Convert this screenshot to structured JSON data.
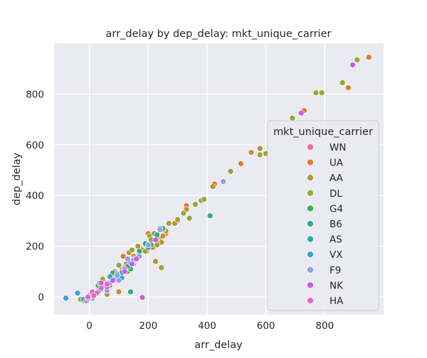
{
  "chart_data": {
    "type": "scatter",
    "title": "arr_delay by dep_delay: mkt_unique_carrier",
    "xlabel": "arr_delay",
    "ylabel": "dep_delay",
    "xlim": [
      -120,
      1000
    ],
    "ylim": [
      -70,
      1000
    ],
    "xticks": [
      0,
      200,
      400,
      600,
      800
    ],
    "yticks": [
      0,
      200,
      400,
      600,
      800
    ],
    "grid": true,
    "legend": {
      "title": "mkt_unique_carrier",
      "placement": "right"
    },
    "series": [
      {
        "name": "WN",
        "color": "#e8708a",
        "points": [
          [
            10,
            20
          ],
          [
            30,
            25
          ],
          [
            45,
            50
          ],
          [
            60,
            55
          ],
          [
            80,
            75
          ],
          [
            95,
            90
          ],
          [
            110,
            115
          ],
          [
            125,
            130
          ],
          [
            140,
            150
          ],
          [
            160,
            160
          ],
          [
            175,
            180
          ],
          [
            20,
            10
          ],
          [
            -10,
            -5
          ],
          [
            5,
            0
          ],
          [
            70,
            60
          ],
          [
            100,
            85
          ],
          [
            130,
            120
          ],
          [
            150,
            145
          ],
          [
            200,
            190
          ],
          [
            85,
            100
          ],
          [
            40,
            30
          ]
        ]
      },
      {
        "name": "UA",
        "color": "#e07a2e",
        "points": [
          [
            950,
            945
          ],
          [
            880,
            825
          ],
          [
            730,
            735
          ],
          [
            600,
            565
          ],
          [
            515,
            525
          ],
          [
            425,
            445
          ],
          [
            330,
            360
          ],
          [
            300,
            300
          ],
          [
            260,
            250
          ],
          [
            240,
            230
          ],
          [
            230,
            230
          ],
          [
            200,
            200
          ],
          [
            185,
            180
          ],
          [
            170,
            170
          ],
          [
            150,
            160
          ],
          [
            130,
            120
          ],
          [
            110,
            100
          ],
          [
            90,
            80
          ],
          [
            60,
            55
          ],
          [
            30,
            20
          ],
          [
            10,
            5
          ],
          [
            -5,
            -5
          ],
          [
            115,
            160
          ],
          [
            175,
            190
          ],
          [
            200,
            250
          ],
          [
            250,
            270
          ],
          [
            215,
            195
          ],
          [
            235,
            215
          ]
        ]
      },
      {
        "name": "AA",
        "color": "#b79532",
        "points": [
          [
            580,
            585
          ],
          [
            550,
            570
          ],
          [
            420,
            435
          ],
          [
            380,
            380
          ],
          [
            330,
            345
          ],
          [
            320,
            330
          ],
          [
            290,
            290
          ],
          [
            260,
            260
          ],
          [
            250,
            240
          ],
          [
            240,
            270
          ],
          [
            225,
            140
          ],
          [
            195,
            180
          ],
          [
            180,
            185
          ],
          [
            160,
            150
          ],
          [
            150,
            130
          ],
          [
            140,
            145
          ],
          [
            120,
            110
          ],
          [
            100,
            90
          ],
          [
            85,
            75
          ],
          [
            70,
            60
          ],
          [
            55,
            40
          ],
          [
            40,
            35
          ],
          [
            20,
            15
          ],
          [
            5,
            5
          ],
          [
            -15,
            -10
          ],
          [
            100,
            20
          ],
          [
            60,
            10
          ],
          [
            165,
            200
          ],
          [
            245,
            215
          ],
          [
            230,
            215
          ],
          [
            135,
            175
          ]
        ]
      },
      {
        "name": "DL",
        "color": "#96a833",
        "points": [
          [
            910,
            935
          ],
          [
            860,
            845
          ],
          [
            790,
            805
          ],
          [
            770,
            805
          ],
          [
            690,
            705
          ],
          [
            600,
            565
          ],
          [
            580,
            560
          ],
          [
            480,
            495
          ],
          [
            390,
            385
          ],
          [
            360,
            365
          ],
          [
            340,
            310
          ],
          [
            320,
            330
          ],
          [
            300,
            305
          ],
          [
            270,
            290
          ],
          [
            250,
            265
          ],
          [
            245,
            115
          ],
          [
            230,
            205
          ],
          [
            200,
            195
          ],
          [
            190,
            180
          ],
          [
            170,
            175
          ],
          [
            150,
            150
          ],
          [
            140,
            130
          ],
          [
            120,
            115
          ],
          [
            110,
            95
          ],
          [
            95,
            80
          ],
          [
            80,
            70
          ],
          [
            65,
            55
          ],
          [
            50,
            45
          ],
          [
            30,
            25
          ],
          [
            15,
            10
          ],
          [
            0,
            0
          ],
          [
            -20,
            -15
          ],
          [
            -30,
            -10
          ],
          [
            45,
            70
          ],
          [
            130,
            100
          ],
          [
            205,
            240
          ],
          [
            210,
            225
          ],
          [
            220,
            250
          ],
          [
            100,
            125
          ],
          [
            145,
            185
          ],
          [
            70,
            45
          ]
        ]
      },
      {
        "name": "G4",
        "color": "#3cad5b",
        "points": [
          [
            140,
            110
          ],
          [
            60,
            35
          ],
          [
            100,
            80
          ],
          [
            20,
            10
          ],
          [
            80,
            95
          ],
          [
            30,
            45
          ]
        ]
      },
      {
        "name": "B6",
        "color": "#36a88a",
        "points": [
          [
            410,
            320
          ],
          [
            250,
            270
          ],
          [
            170,
            180
          ],
          [
            130,
            120
          ],
          [
            90,
            70
          ],
          [
            50,
            40
          ],
          [
            20,
            15
          ],
          [
            140,
            20
          ],
          [
            10,
            -5
          ],
          [
            210,
            205
          ],
          [
            230,
            245
          ],
          [
            190,
            210
          ],
          [
            110,
            95
          ]
        ]
      },
      {
        "name": "AS",
        "color": "#37a3a7",
        "points": [
          [
            240,
            270
          ],
          [
            200,
            195
          ],
          [
            160,
            150
          ],
          [
            120,
            110
          ],
          [
            80,
            70
          ],
          [
            40,
            30
          ],
          [
            10,
            5
          ],
          [
            -15,
            -10
          ],
          [
            60,
            40
          ],
          [
            150,
            140
          ],
          [
            95,
            90
          ]
        ]
      },
      {
        "name": "VX",
        "color": "#3aa4cf",
        "points": [
          [
            -80,
            -5
          ],
          [
            -40,
            15
          ],
          [
            -20,
            -10
          ],
          [
            0,
            5
          ],
          [
            30,
            20
          ],
          [
            60,
            45
          ],
          [
            90,
            70
          ],
          [
            140,
            135
          ],
          [
            110,
            75
          ],
          [
            70,
            80
          ]
        ]
      },
      {
        "name": "F9",
        "color": "#8e9ee7",
        "points": [
          [
            455,
            455
          ],
          [
            240,
            265
          ],
          [
            200,
            205
          ],
          [
            150,
            145
          ],
          [
            120,
            110
          ],
          [
            95,
            85
          ],
          [
            70,
            55
          ],
          [
            50,
            40
          ],
          [
            20,
            10
          ],
          [
            0,
            -5
          ],
          [
            -10,
            -15
          ],
          [
            100,
            65
          ],
          [
            130,
            150
          ],
          [
            170,
            160
          ],
          [
            60,
            25
          ],
          [
            35,
            55
          ]
        ]
      },
      {
        "name": "NK",
        "color": "#c55de8",
        "points": [
          [
            895,
            915
          ],
          [
            720,
            725
          ],
          [
            225,
            225
          ],
          [
            180,
            -2
          ],
          [
            160,
            150
          ],
          [
            120,
            100
          ],
          [
            80,
            65
          ],
          [
            40,
            55
          ],
          [
            10,
            15
          ],
          [
            -5,
            -5
          ],
          [
            145,
            130
          ],
          [
            60,
            40
          ]
        ]
      },
      {
        "name": "HA",
        "color": "#e664be",
        "points": [
          [
            10,
            20
          ],
          [
            40,
            35
          ],
          [
            -5,
            0
          ],
          [
            25,
            15
          ],
          [
            60,
            50
          ],
          [
            15,
            5
          ]
        ]
      }
    ]
  }
}
